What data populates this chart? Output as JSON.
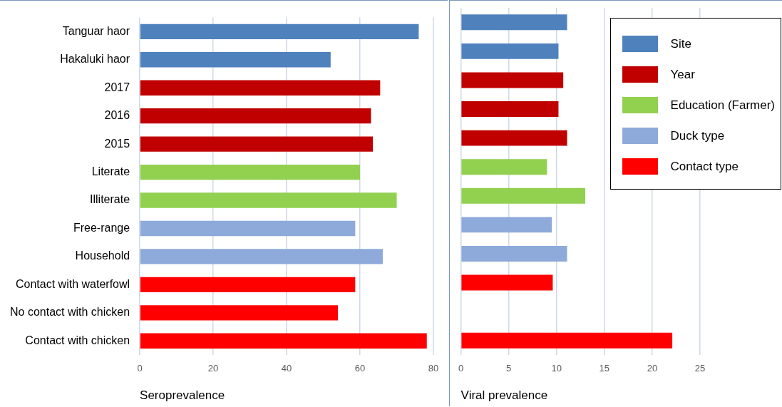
{
  "chart_data": [
    {
      "type": "bar",
      "orientation": "horizontal",
      "xlabel": "Seroprevalence",
      "categories": [
        "Tanguar haor",
        "Hakaluki haor",
        "2017",
        "2016",
        "2015",
        "Literate",
        "Illiterate",
        "Free-range",
        "Household",
        "Contact with waterfowl",
        "No contact with chicken",
        "Contact with chicken"
      ],
      "xlim": [
        0,
        80
      ],
      "xticks": [
        0,
        20,
        40,
        60,
        80
      ],
      "grid": "x",
      "legend": false,
      "series": [
        {
          "color": "#4f81bd",
          "values": [
            76,
            52,
            null,
            null,
            null,
            null,
            null,
            null,
            null,
            null,
            null,
            null
          ]
        },
        {
          "color": "#c00000",
          "values": [
            null,
            null,
            65.5,
            63,
            63.5,
            null,
            null,
            null,
            null,
            null,
            null,
            null
          ]
        },
        {
          "color": "#92d050",
          "values": [
            null,
            null,
            null,
            null,
            null,
            60,
            70,
            null,
            null,
            null,
            null,
            null
          ]
        },
        {
          "color": "#8eaadb",
          "values": [
            null,
            null,
            null,
            null,
            null,
            null,
            null,
            58.7,
            66.2,
            null,
            null,
            null
          ]
        },
        {
          "color": "#ff0000",
          "values": [
            null,
            null,
            null,
            null,
            null,
            null,
            null,
            null,
            null,
            58.7,
            54,
            78.2
          ]
        }
      ]
    },
    {
      "type": "bar",
      "orientation": "horizontal",
      "xlabel": "Viral prevalence",
      "categories": [
        null,
        null,
        null,
        null,
        null,
        null,
        null,
        null,
        null,
        null,
        null,
        null
      ],
      "xlim": [
        0,
        25
      ],
      "xticks": [
        0,
        5,
        10,
        15,
        20,
        25
      ],
      "grid": "x",
      "legend": "top right",
      "tick_labels": "x",
      "series": [
        {
          "name": "Site",
          "color": "#4f81bd",
          "values": [
            11.1,
            10.2,
            null,
            null,
            null,
            null,
            null,
            null,
            null,
            null,
            null,
            null
          ]
        },
        {
          "name": "Year",
          "color": "#c00000",
          "values": [
            null,
            null,
            10.7,
            10.2,
            11.1,
            null,
            null,
            null,
            null,
            null,
            null,
            null
          ]
        },
        {
          "name": "Education (Farmer)",
          "color": "#92d050",
          "values": [
            null,
            null,
            null,
            null,
            null,
            9,
            13,
            null,
            null,
            null,
            null,
            null
          ]
        },
        {
          "name": "Duck type",
          "color": "#8eaadb",
          "values": [
            null,
            null,
            null,
            null,
            null,
            null,
            null,
            9.5,
            11.1,
            null,
            null,
            null
          ]
        },
        {
          "name": "Contact type",
          "color": "#ff0000",
          "values": [
            null,
            null,
            null,
            null,
            null,
            null,
            null,
            null,
            null,
            9.6,
            null,
            22.1
          ]
        }
      ]
    }
  ]
}
